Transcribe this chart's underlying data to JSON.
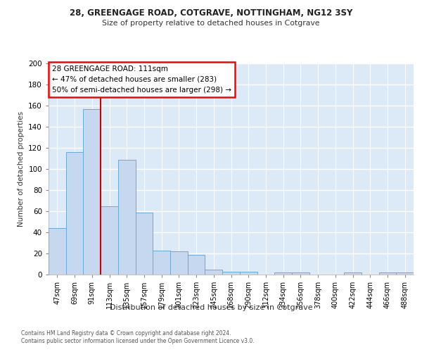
{
  "title1": "28, GREENGAGE ROAD, COTGRAVE, NOTTINGHAM, NG12 3SY",
  "title2": "Size of property relative to detached houses in Cotgrave",
  "xlabel": "Distribution of detached houses by size in Cotgrave",
  "ylabel": "Number of detached properties",
  "bar_labels": [
    "47sqm",
    "69sqm",
    "91sqm",
    "113sqm",
    "135sqm",
    "157sqm",
    "179sqm",
    "201sqm",
    "223sqm",
    "245sqm",
    "268sqm",
    "290sqm",
    "312sqm",
    "334sqm",
    "356sqm",
    "378sqm",
    "400sqm",
    "422sqm",
    "444sqm",
    "466sqm",
    "488sqm"
  ],
  "bar_values": [
    44,
    116,
    157,
    65,
    109,
    59,
    23,
    22,
    19,
    5,
    3,
    3,
    0,
    2,
    2,
    0,
    0,
    2,
    0,
    2,
    2
  ],
  "bar_color": "#c5d8f0",
  "bar_edge_color": "#6aaad4",
  "annotation_text": "28 GREENGAGE ROAD: 111sqm\n← 47% of detached houses are smaller (283)\n50% of semi-detached houses are larger (298) →",
  "annotation_box_color": "white",
  "annotation_box_edge_color": "red",
  "vline_color": "#cc0000",
  "ylim": [
    0,
    200
  ],
  "yticks": [
    0,
    20,
    40,
    60,
    80,
    100,
    120,
    140,
    160,
    180,
    200
  ],
  "footer1": "Contains HM Land Registry data © Crown copyright and database right 2024.",
  "footer2": "Contains public sector information licensed under the Open Government Licence v3.0.",
  "plot_bg_color": "#dce9f7",
  "fig_bg_color": "#ffffff"
}
